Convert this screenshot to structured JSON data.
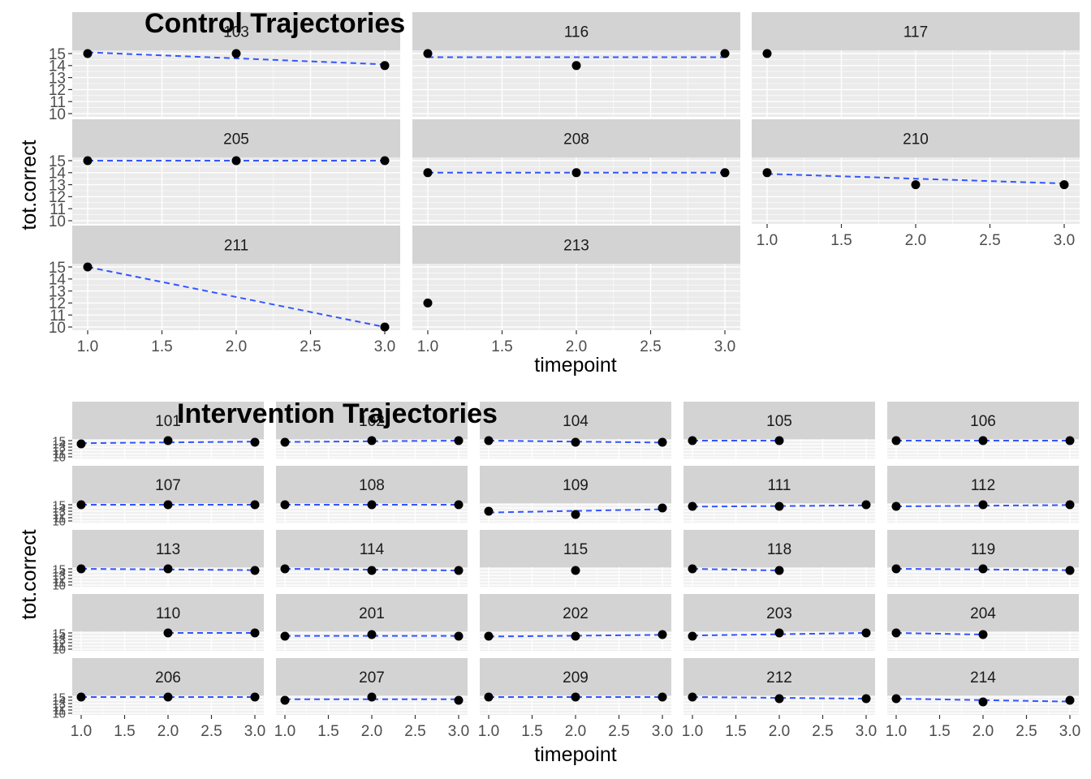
{
  "figure": {
    "control_title": "Control Trajectories",
    "intervention_title": "Intervention Trajectories",
    "line_color": "#3355ff",
    "point_color": "#000000",
    "strip_color": "#d3d3d3",
    "panel_bg": "#ebebeb"
  },
  "chart_data": [
    {
      "type": "scatter",
      "title": "Control Trajectories",
      "xlabel": "timepoint",
      "ylabel": "tot.correct",
      "xlim": [
        1,
        3
      ],
      "ylim": [
        10,
        15
      ],
      "x_ticks": [
        "1.0",
        "1.5",
        "2.0",
        "2.5",
        "3.0"
      ],
      "y_ticks": [
        "10",
        "11",
        "12",
        "13",
        "14",
        "15"
      ],
      "grid": true,
      "facets": [
        {
          "id": "103",
          "x": [
            1,
            2,
            3
          ],
          "y": [
            15,
            15,
            14
          ],
          "trend": [
            15.1,
            14.1
          ]
        },
        {
          "id": "116",
          "x": [
            1,
            2,
            3
          ],
          "y": [
            15,
            14,
            15
          ],
          "trend": [
            14.7,
            14.7
          ]
        },
        {
          "id": "117",
          "x": [
            1
          ],
          "y": [
            15
          ],
          "trend": null
        },
        {
          "id": "205",
          "x": [
            1,
            2,
            3
          ],
          "y": [
            15,
            15,
            15
          ],
          "trend": [
            15,
            15
          ]
        },
        {
          "id": "208",
          "x": [
            1,
            2,
            3
          ],
          "y": [
            14,
            14,
            14
          ],
          "trend": [
            14,
            14
          ]
        },
        {
          "id": "210",
          "x": [
            1,
            2,
            3
          ],
          "y": [
            14,
            13,
            13
          ],
          "trend": [
            13.9,
            13.1
          ]
        },
        {
          "id": "211",
          "x": [
            1,
            3
          ],
          "y": [
            15,
            10
          ],
          "trend": [
            15,
            10
          ]
        },
        {
          "id": "213",
          "x": [
            1
          ],
          "y": [
            12
          ],
          "trend": null
        }
      ]
    },
    {
      "type": "scatter",
      "title": "Intervention Trajectories",
      "xlabel": "timepoint",
      "ylabel": "tot.correct",
      "xlim": [
        1,
        3
      ],
      "ylim": [
        10,
        15
      ],
      "x_ticks": [
        "1.0",
        "1.5",
        "2.0",
        "2.5",
        "3.0"
      ],
      "y_ticks": [
        "10",
        "11",
        "12",
        "13",
        "14",
        "15"
      ],
      "grid": true,
      "facets": [
        {
          "id": "101",
          "x": [
            1,
            2,
            3
          ],
          "y": [
            14,
            15,
            14.5
          ],
          "trend": [
            14.2,
            14.7
          ]
        },
        {
          "id": "102",
          "x": [
            1,
            2,
            3
          ],
          "y": [
            14.5,
            15,
            15
          ],
          "trend": [
            14.6,
            15
          ]
        },
        {
          "id": "104",
          "x": [
            1,
            2,
            3
          ],
          "y": [
            15,
            14.5,
            14.5
          ],
          "trend": [
            15,
            14.4
          ]
        },
        {
          "id": "105",
          "x": [
            1,
            2
          ],
          "y": [
            15,
            15
          ],
          "trend": [
            15,
            15
          ]
        },
        {
          "id": "106",
          "x": [
            1,
            2,
            3
          ],
          "y": [
            15,
            15,
            15
          ],
          "trend": [
            15,
            15
          ]
        },
        {
          "id": "107",
          "x": [
            1,
            2,
            3
          ],
          "y": [
            15,
            15,
            15
          ],
          "trend": [
            15,
            15
          ]
        },
        {
          "id": "108",
          "x": [
            1,
            2,
            3
          ],
          "y": [
            15,
            15,
            15
          ],
          "trend": [
            15,
            15
          ]
        },
        {
          "id": "109",
          "x": [
            1,
            2,
            3
          ],
          "y": [
            13,
            12,
            14
          ],
          "trend": [
            12.6,
            13.6
          ]
        },
        {
          "id": "111",
          "x": [
            1,
            2,
            3
          ],
          "y": [
            14.5,
            14.5,
            15
          ],
          "trend": [
            14.4,
            14.8
          ]
        },
        {
          "id": "112",
          "x": [
            1,
            2,
            3
          ],
          "y": [
            14.5,
            15,
            15
          ],
          "trend": [
            14.5,
            14.9
          ]
        },
        {
          "id": "113",
          "x": [
            1,
            2,
            3
          ],
          "y": [
            15,
            15,
            14.5
          ],
          "trend": [
            15,
            14.6
          ]
        },
        {
          "id": "114",
          "x": [
            1,
            2,
            3
          ],
          "y": [
            15,
            14.5,
            14.5
          ],
          "trend": [
            15,
            14.5
          ]
        },
        {
          "id": "115",
          "x": [
            2
          ],
          "y": [
            14.5
          ],
          "trend": null
        },
        {
          "id": "118",
          "x": [
            1,
            2
          ],
          "y": [
            15,
            14.5
          ],
          "trend": [
            15,
            14.5
          ]
        },
        {
          "id": "119",
          "x": [
            1,
            2,
            3
          ],
          "y": [
            15,
            15,
            14.5
          ],
          "trend": [
            15,
            14.6
          ]
        },
        {
          "id": "110",
          "x": [
            2,
            3
          ],
          "y": [
            15,
            15
          ],
          "trend": [
            15,
            15
          ]
        },
        {
          "id": "201",
          "x": [
            1,
            2,
            3
          ],
          "y": [
            14,
            14.5,
            14
          ],
          "trend": [
            14.1,
            14.1
          ]
        },
        {
          "id": "202",
          "x": [
            1,
            2,
            3
          ],
          "y": [
            14,
            14,
            14.5
          ],
          "trend": [
            13.9,
            14.4
          ]
        },
        {
          "id": "203",
          "x": [
            1,
            2,
            3
          ],
          "y": [
            14,
            15,
            15
          ],
          "trend": [
            14.2,
            15
          ]
        },
        {
          "id": "204",
          "x": [
            1,
            2
          ],
          "y": [
            15,
            14.5
          ],
          "trend": [
            15,
            14.5
          ]
        },
        {
          "id": "206",
          "x": [
            1,
            2,
            3
          ],
          "y": [
            15,
            15,
            15
          ],
          "trend": [
            15,
            15
          ]
        },
        {
          "id": "207",
          "x": [
            1,
            2,
            3
          ],
          "y": [
            14,
            15,
            14
          ],
          "trend": [
            14.3,
            14.3
          ]
        },
        {
          "id": "209",
          "x": [
            1,
            2,
            3
          ],
          "y": [
            15,
            15,
            15
          ],
          "trend": [
            15,
            15
          ]
        },
        {
          "id": "212",
          "x": [
            1,
            2,
            3
          ],
          "y": [
            15,
            14.5,
            14.5
          ],
          "trend": [
            15,
            14.5
          ]
        },
        {
          "id": "214",
          "x": [
            1,
            2,
            3
          ],
          "y": [
            14.5,
            13.5,
            14
          ],
          "trend": [
            14.5,
            13.6
          ]
        }
      ]
    }
  ]
}
